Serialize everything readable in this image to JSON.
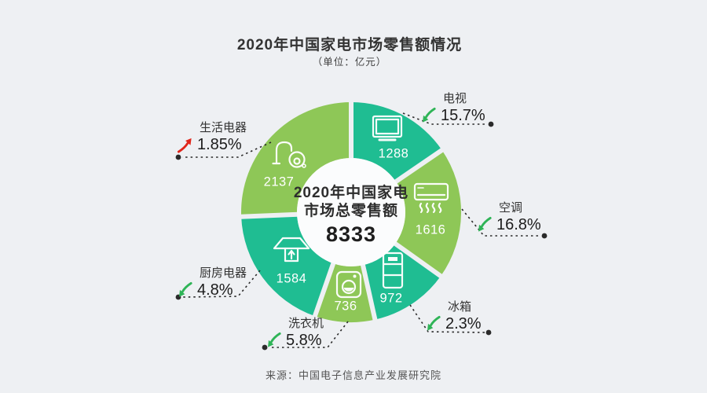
{
  "colors": {
    "background": "#eef0f3",
    "center_circle": "#fbfcfd",
    "teal_segment": "#1fbd92",
    "green_segment": "#8ec757",
    "trend_down_arrow": "#2fb457",
    "trend_up_arrow": "#e0261b",
    "leader_line": "#2a2a2a",
    "value_text": "#ffffff"
  },
  "footer": {
    "source": "来源：中国电子信息产业发展研究院"
  },
  "chart_data": {
    "type": "pie",
    "variant": "donut",
    "title": "2020年中国家电市场零售额情况",
    "unit_note": "（单位：亿元）",
    "center_label_lines": [
      "2020年中国家电",
      "市场总零售额"
    ],
    "total_value": 8333,
    "start_angle_deg": 0,
    "clockwise": true,
    "legend_position": "callouts-around-donut",
    "series": [
      {
        "name": "电视",
        "value": 1288,
        "pct_label": "15.7%",
        "trend": "down",
        "color": "#1fbd92",
        "icon": "tv-icon"
      },
      {
        "name": "空调",
        "value": 1616,
        "pct_label": "16.8%",
        "trend": "down",
        "color": "#8ec757",
        "icon": "air-conditioner-icon"
      },
      {
        "name": "冰箱",
        "value": 972,
        "pct_label": "2.3%",
        "trend": "down",
        "color": "#1fbd92",
        "icon": "fridge-icon"
      },
      {
        "name": "洗衣机",
        "value": 736,
        "pct_label": "5.8%",
        "trend": "down",
        "color": "#8ec757",
        "icon": "washing-machine-icon"
      },
      {
        "name": "厨房电器",
        "value": 1584,
        "pct_label": "4.8%",
        "trend": "down",
        "color": "#1fbd92",
        "icon": "range-hood-icon"
      },
      {
        "name": "生活电器",
        "value": 2137,
        "pct_label": "1.85%",
        "trend": "up",
        "color": "#8ec757",
        "icon": "vacuum-cleaner-icon"
      }
    ]
  }
}
